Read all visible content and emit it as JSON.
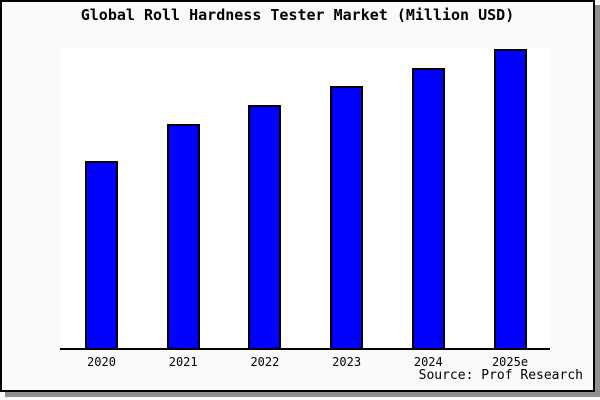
{
  "figure": {
    "title": "Global Roll Hardness Tester Market (Million USD)",
    "source_note": "Source: Prof Research"
  },
  "colors": {
    "bar_fill": "#0000ff",
    "bar_border": "#000000",
    "figure_bg": "#fafafa",
    "plot_bg": "#ffffff",
    "border": "#000000",
    "axis": "#000000",
    "shadow": "#909090",
    "text": "#000000"
  },
  "chart_data": {
    "type": "bar",
    "title": "Global Roll Hardness Tester Market (Million USD)",
    "categories": [
      "2020",
      "2021",
      "2022",
      "2023",
      "2024",
      "2025e"
    ],
    "values": [
      62.5,
      74.9,
      81.3,
      87.6,
      93.6,
      100.0
    ],
    "value_note": "No y-axis scale or data labels shown; values are relative bar heights indexed to 2025e = 100",
    "xlabel": "",
    "ylabel": "",
    "ylim": [
      0,
      100
    ],
    "grid": false,
    "legend": null,
    "source": "Source: Prof Research"
  }
}
